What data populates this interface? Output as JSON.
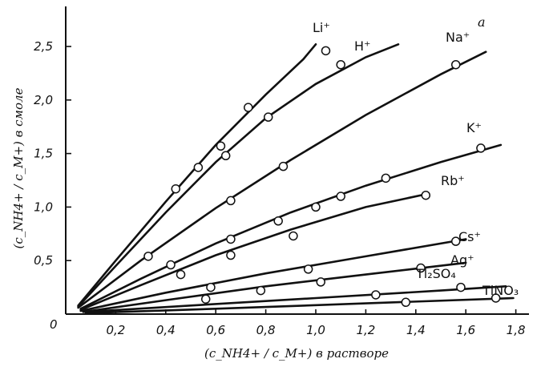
{
  "panel_label": "a",
  "chart_data": {
    "type": "line",
    "xlabel": "(c_NH4+ / c_M+) в растворе",
    "ylabel": "(c_NH4+ / c_M+) в смоле",
    "xlim": [
      0,
      1.8
    ],
    "ylim": [
      0,
      2.75
    ],
    "x_ticks": [
      "0,2",
      "0,4",
      "0,6",
      "0,8",
      "1,0",
      "1,2",
      "1,4",
      "1,6",
      "1,8"
    ],
    "y_ticks": [
      "0,5",
      "1,0",
      "1,5",
      "2,0",
      "2,5"
    ],
    "origin_label": "0",
    "grid": false,
    "legend": "none",
    "series": [
      {
        "name": "Li⁺",
        "curve_x": [
          0.05,
          0.2,
          0.4,
          0.6,
          0.8,
          0.95,
          1.0
        ],
        "curve_y": [
          0.08,
          0.5,
          1.05,
          1.58,
          2.05,
          2.38,
          2.52
        ],
        "points": [
          [
            0.44,
            1.17
          ],
          [
            0.53,
            1.37
          ],
          [
            0.62,
            1.57
          ],
          [
            0.73,
            1.93
          ],
          [
            1.04,
            2.46
          ]
        ]
      },
      {
        "name": "H⁺",
        "curve_x": [
          0.05,
          0.2,
          0.4,
          0.6,
          0.8,
          1.0,
          1.2,
          1.33
        ],
        "curve_y": [
          0.07,
          0.45,
          0.95,
          1.42,
          1.83,
          2.15,
          2.4,
          2.52
        ],
        "points": [
          [
            0.64,
            1.48
          ],
          [
            0.81,
            1.84
          ],
          [
            1.1,
            2.33
          ]
        ]
      },
      {
        "name": "Na⁺",
        "curve_x": [
          0.05,
          0.3,
          0.6,
          0.9,
          1.2,
          1.5,
          1.68
        ],
        "curve_y": [
          0.06,
          0.5,
          0.99,
          1.44,
          1.86,
          2.24,
          2.45
        ],
        "points": [
          [
            0.33,
            0.54
          ],
          [
            0.42,
            0.46
          ],
          [
            0.66,
            1.06
          ],
          [
            0.87,
            1.38
          ],
          [
            1.56,
            2.33
          ]
        ]
      },
      {
        "name": "K⁺",
        "curve_x": [
          0.06,
          0.3,
          0.6,
          0.9,
          1.2,
          1.5,
          1.74
        ],
        "curve_y": [
          0.05,
          0.33,
          0.66,
          0.95,
          1.2,
          1.42,
          1.58
        ],
        "points": [
          [
            0.66,
            0.7
          ],
          [
            0.85,
            0.87
          ],
          [
            1.1,
            1.1
          ],
          [
            1.28,
            1.27
          ],
          [
            1.66,
            1.55
          ]
        ]
      },
      {
        "name": "Rb⁺",
        "curve_x": [
          0.06,
          0.3,
          0.6,
          0.9,
          1.2,
          1.44
        ],
        "curve_y": [
          0.04,
          0.27,
          0.55,
          0.79,
          1.0,
          1.12
        ],
        "points": [
          [
            0.46,
            0.37
          ],
          [
            0.66,
            0.55
          ],
          [
            0.91,
            0.73
          ],
          [
            1.0,
            1.0
          ],
          [
            1.44,
            1.11
          ]
        ]
      },
      {
        "name": "Cs⁺",
        "curve_x": [
          0.06,
          0.4,
          0.8,
          1.2,
          1.6
        ],
        "curve_y": [
          0.03,
          0.2,
          0.38,
          0.54,
          0.7
        ],
        "points": [
          [
            0.58,
            0.25
          ],
          [
            0.97,
            0.42
          ],
          [
            1.56,
            0.68
          ]
        ]
      },
      {
        "name": "Ag⁺",
        "curve_x": [
          0.07,
          0.4,
          0.8,
          1.2,
          1.6
        ],
        "curve_y": [
          0.02,
          0.13,
          0.26,
          0.37,
          0.48
        ],
        "points": [
          [
            0.56,
            0.14
          ],
          [
            0.78,
            0.22
          ],
          [
            1.02,
            0.3
          ],
          [
            1.42,
            0.43
          ]
        ]
      },
      {
        "name": "Tl₂SO₄",
        "curve_x": [
          0.08,
          0.5,
          1.0,
          1.5,
          1.76
        ],
        "curve_y": [
          0.02,
          0.08,
          0.15,
          0.22,
          0.26
        ],
        "points": [
          [
            1.24,
            0.18
          ],
          [
            1.58,
            0.25
          ]
        ]
      },
      {
        "name": "TlNO₃",
        "curve_x": [
          0.08,
          0.6,
          1.2,
          1.79
        ],
        "curve_y": [
          0.01,
          0.05,
          0.1,
          0.15
        ],
        "points": [
          [
            1.36,
            0.11
          ],
          [
            1.72,
            0.15
          ]
        ]
      }
    ]
  }
}
